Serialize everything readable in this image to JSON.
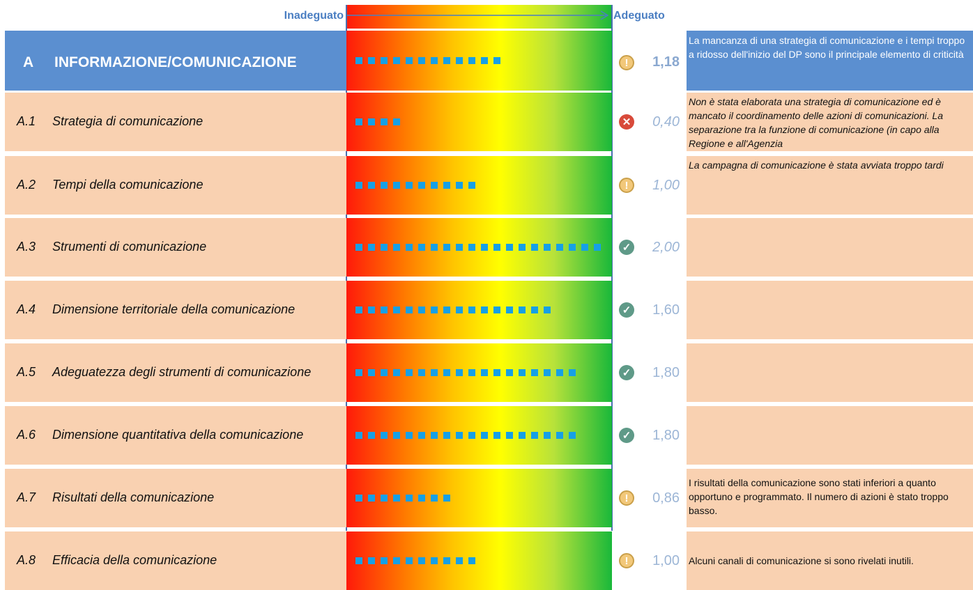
{
  "scale": {
    "left_label": "Inadeguato",
    "right_label": "Adeguato"
  },
  "scale_max": 2.0,
  "colors": {
    "header_blue": "#5b8fd0",
    "row_peach": "#f9d1b1",
    "square": "#16a0e6",
    "value": "#9db6d6"
  },
  "header": {
    "code": "A",
    "name": "INFORMAZIONE/COMUNICAZIONE",
    "value": "1,18",
    "score": 1.18,
    "squares": 12,
    "icon": "warning-icon",
    "note": "La mancanza di una strategia di comunicazione e i tempi troppo a ridosso dell'inizio del DP sono il principale elemento di criticità"
  },
  "rows": [
    {
      "code": "A.1",
      "name": "Strategia di comunicazione",
      "value": "0,40",
      "score": 0.4,
      "squares": 4,
      "icon": "error-icon",
      "italic_value": true,
      "note": "Non è stata elaborata una strategia di comunicazione ed è mancato il coordinamento delle azioni di comunicazioni. La separazione tra la funzione di comunicazione (in capo alla Regione e all'Agenzia",
      "italic_note": true
    },
    {
      "code": "A.2",
      "name": "Tempi della comunicazione",
      "value": "1,00",
      "score": 1.0,
      "squares": 10,
      "icon": "warning-icon",
      "italic_value": true,
      "note": "La campagna di comunicazione è stata avviata troppo tardi",
      "italic_note": true
    },
    {
      "code": "A.3",
      "name": "Strumenti di comunicazione",
      "value": "2,00",
      "score": 2.0,
      "squares": 20,
      "icon": "check-icon",
      "italic_value": true,
      "note": "",
      "italic_note": false
    },
    {
      "code": "A.4",
      "name": "Dimensione territoriale della comunicazione",
      "value": "1,60",
      "score": 1.6,
      "squares": 16,
      "icon": "check-icon",
      "italic_value": false,
      "note": "",
      "italic_note": false
    },
    {
      "code": "A.5",
      "name": "Adeguatezza degli strumenti di comunicazione",
      "value": "1,80",
      "score": 1.8,
      "squares": 18,
      "icon": "check-icon",
      "italic_value": false,
      "note": "",
      "italic_note": false
    },
    {
      "code": "A.6",
      "name": "Dimensione quantitativa della comunicazione",
      "value": "1,80",
      "score": 1.8,
      "squares": 18,
      "icon": "check-icon",
      "italic_value": false,
      "note": "",
      "italic_note": false
    },
    {
      "code": "A.7",
      "name": "Risultati della comunicazione",
      "value": "0,86",
      "score": 0.86,
      "squares": 8,
      "icon": "warning-icon",
      "italic_value": false,
      "note": "I risultati della comunicazione sono stati inferiori a quanto opportuno e programmato. Il numero di azioni è stato troppo basso.",
      "italic_note": false
    },
    {
      "code": "A.8",
      "name": "Efficacia della comunicazione",
      "value": "1,00",
      "score": 1.0,
      "squares": 10,
      "icon": "warning-icon",
      "italic_value": false,
      "note": "Alcuni canali di comunicazione si sono rivelati inutili.",
      "italic_note": false
    }
  ]
}
